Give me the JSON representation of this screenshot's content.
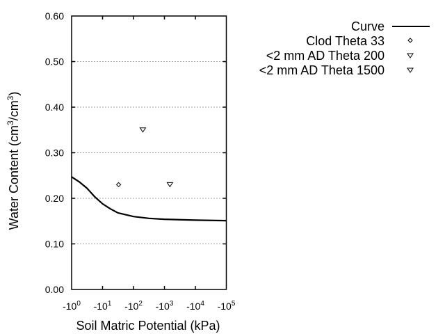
{
  "chart_data": {
    "type": "line",
    "title": "",
    "xlabel": "Soil Matric Potential (kPa)",
    "ylabel": "Water Content (cm3/cm3)",
    "ylabel_parts": {
      "base": "Water Content (cm",
      "sup1": "3",
      "mid": "/cm",
      "sup2": "3",
      "end": ")"
    },
    "xscale": "log",
    "xlim": [
      -1,
      -100000
    ],
    "ylim": [
      0.0,
      0.6
    ],
    "grid": {
      "y": true,
      "x": false,
      "style": "dotted",
      "color": "#a0a0a0"
    },
    "x_ticks": [
      {
        "base": "-10",
        "exp": "0",
        "log": 0
      },
      {
        "base": "-10",
        "exp": "1",
        "log": 1
      },
      {
        "base": "-10",
        "exp": "2",
        "log": 2
      },
      {
        "base": "-10",
        "exp": "3",
        "log": 3
      },
      {
        "base": "-10",
        "exp": "4",
        "log": 4
      },
      {
        "base": "-10",
        "exp": "5",
        "log": 5
      }
    ],
    "y_ticks": [
      "0.00",
      "0.10",
      "0.20",
      "0.30",
      "0.40",
      "0.50",
      "0.60"
    ],
    "legend_position": "upper right (outside plot)",
    "series": [
      {
        "name": "Curve",
        "kind": "line",
        "color": "#000000",
        "x": [
          -1,
          -1.78,
          -3.16,
          -5.62,
          -10,
          -17.8,
          -31.6,
          -100,
          -316,
          -1000,
          -10000,
          -100000
        ],
        "y": [
          0.247,
          0.236,
          0.222,
          0.203,
          0.188,
          0.177,
          0.168,
          0.16,
          0.156,
          0.154,
          0.152,
          0.151
        ]
      },
      {
        "name": "Clod Theta 33",
        "kind": "scatter",
        "marker": "diamond",
        "x": [
          -33
        ],
        "y": [
          0.23
        ]
      },
      {
        "name": "<2 mm AD Theta 200",
        "kind": "scatter",
        "marker": "triangle-down",
        "x": [
          -200
        ],
        "y": [
          0.35
        ]
      },
      {
        "name": "<2 mm AD Theta 1500",
        "kind": "scatter",
        "marker": "triangle-down",
        "x": [
          -1500
        ],
        "y": [
          0.23
        ]
      }
    ]
  },
  "legend": {
    "items": [
      {
        "label": "Curve",
        "symbol": "line"
      },
      {
        "label": "Clod Theta 33",
        "symbol": "diamond"
      },
      {
        "label": "<2 mm AD Theta 200",
        "symbol": "triangle-down"
      },
      {
        "label": "<2 mm AD Theta 1500",
        "symbol": "triangle-down"
      }
    ]
  }
}
